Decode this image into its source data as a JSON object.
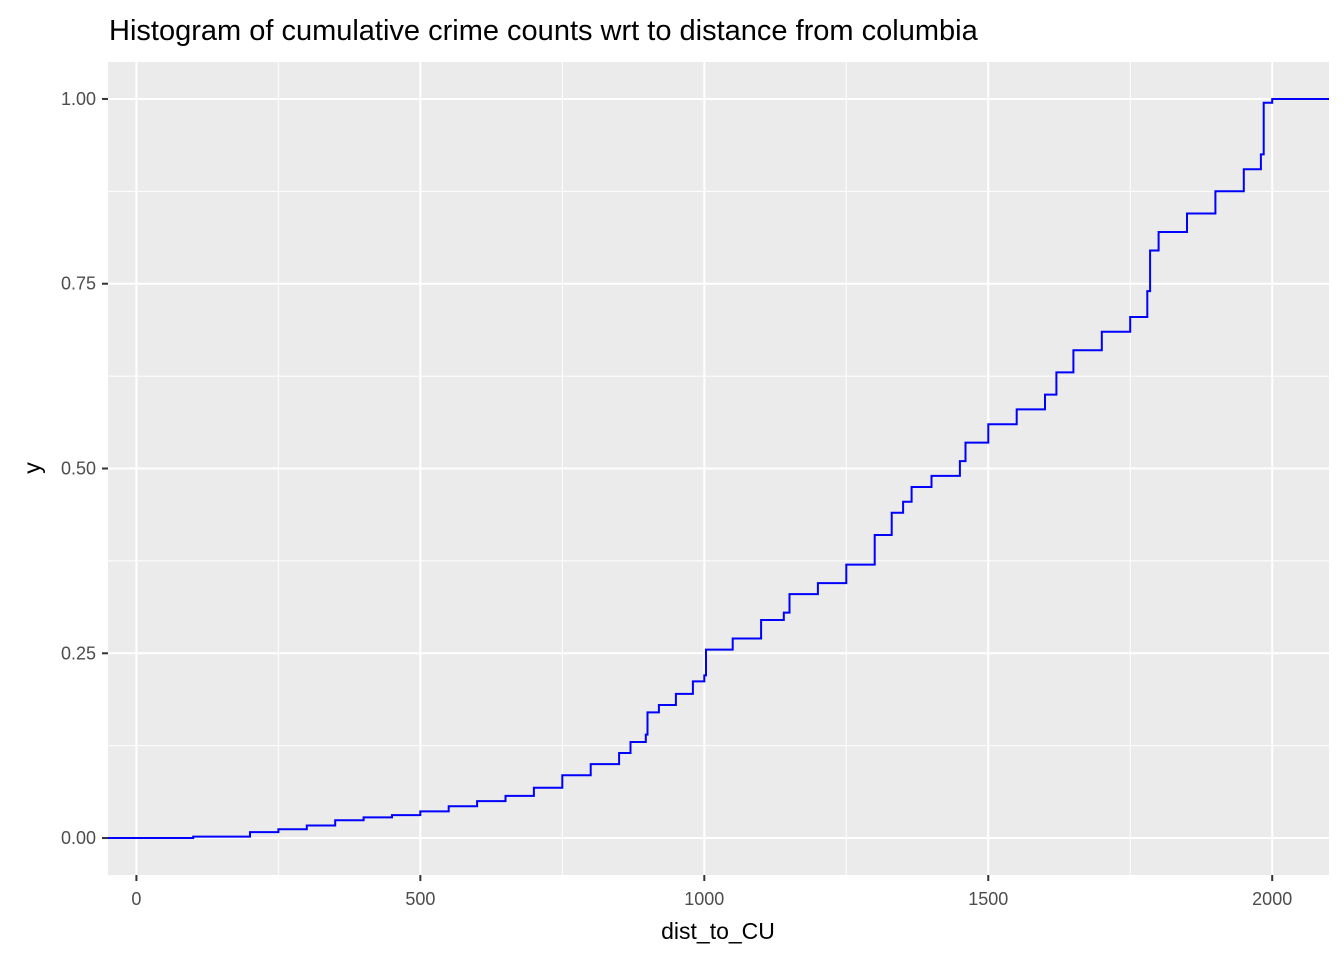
{
  "chart_data": {
    "type": "line",
    "title": "Histogram of cumulative crime counts wrt to distance from columbia",
    "xlabel": "dist_to_CU",
    "ylabel": "y",
    "xlim": [
      -50,
      2100
    ],
    "ylim": [
      -0.05,
      1.05
    ],
    "x_ticks": [
      0,
      500,
      1000,
      1500,
      2000
    ],
    "x_tick_labels": [
      "0",
      "500",
      "1000",
      "1500",
      "2000"
    ],
    "y_ticks": [
      0,
      0.25,
      0.5,
      0.75,
      1
    ],
    "y_tick_labels": [
      "0.00",
      "0.25",
      "0.50",
      "0.75",
      "1.00"
    ],
    "grid": true,
    "line_color": "#0000ff",
    "panel_background": "#ebebeb",
    "grid_color": "#ffffff",
    "series": [
      {
        "step": true,
        "x": [
          -50,
          0,
          100,
          200,
          250,
          300,
          350,
          400,
          450,
          500,
          550,
          600,
          650,
          700,
          750,
          800,
          850,
          870,
          897,
          900,
          920,
          950,
          980,
          1000,
          1003,
          1050,
          1100,
          1140,
          1150,
          1200,
          1250,
          1300,
          1330,
          1350,
          1365,
          1400,
          1450,
          1460,
          1500,
          1550,
          1600,
          1620,
          1650,
          1700,
          1750,
          1780,
          1785,
          1800,
          1850,
          1900,
          1950,
          1980,
          1985,
          2000,
          2100
        ],
        "y": [
          0,
          0,
          0.002,
          0.008,
          0.012,
          0.017,
          0.024,
          0.028,
          0.031,
          0.036,
          0.043,
          0.05,
          0.057,
          0.068,
          0.085,
          0.1,
          0.115,
          0.13,
          0.14,
          0.17,
          0.18,
          0.195,
          0.212,
          0.22,
          0.255,
          0.27,
          0.295,
          0.305,
          0.33,
          0.345,
          0.37,
          0.41,
          0.44,
          0.455,
          0.475,
          0.49,
          0.51,
          0.535,
          0.56,
          0.58,
          0.6,
          0.63,
          0.66,
          0.685,
          0.705,
          0.74,
          0.795,
          0.82,
          0.845,
          0.875,
          0.905,
          0.925,
          0.995,
          1.0,
          1.0
        ]
      }
    ]
  }
}
